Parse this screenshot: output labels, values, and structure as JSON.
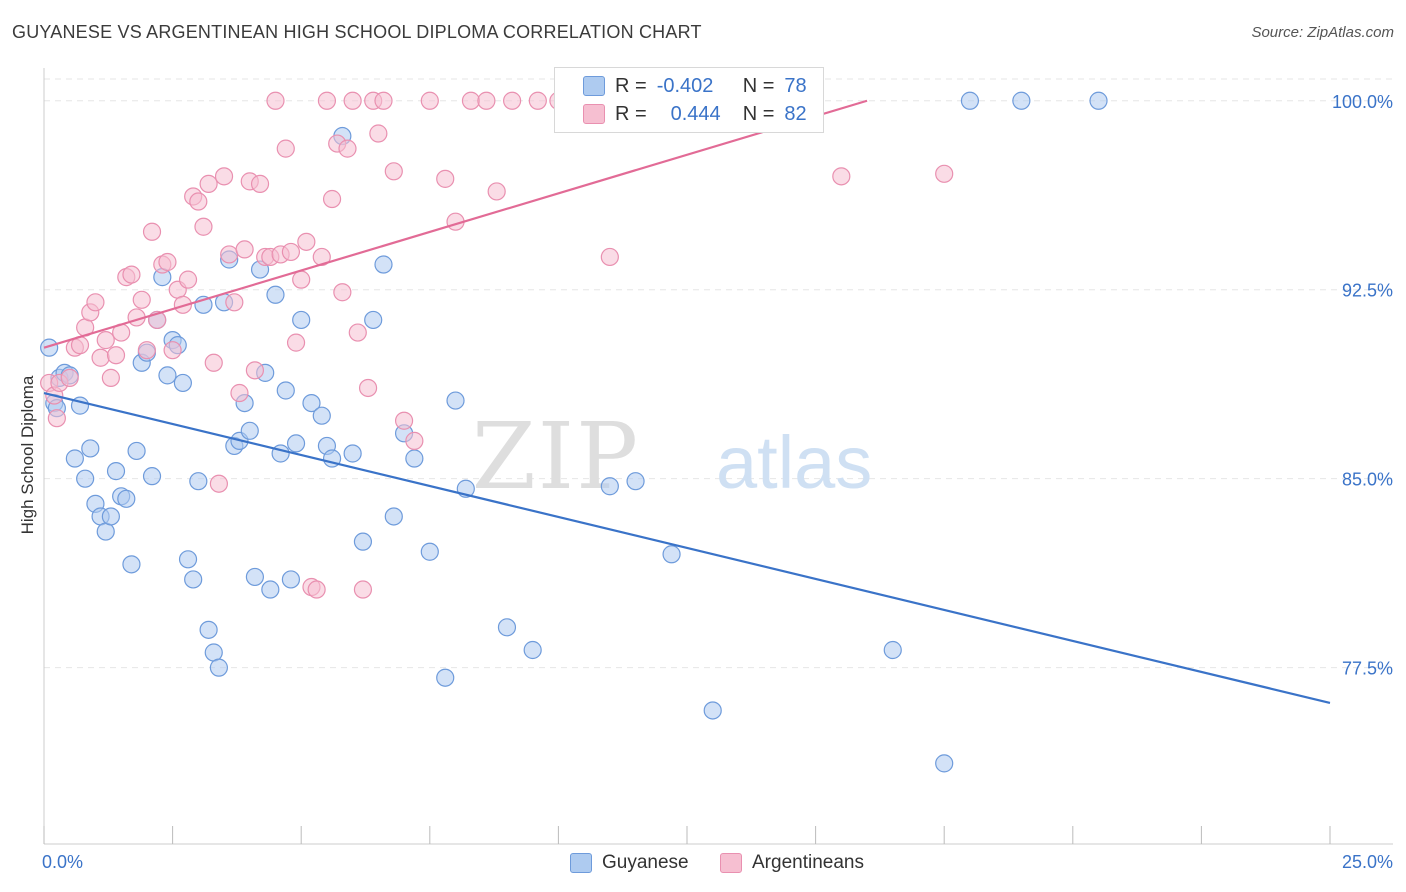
{
  "title": "GUYANESE VS ARGENTINEAN HIGH SCHOOL DIPLOMA CORRELATION CHART",
  "source": "Source: ZipAtlas.com",
  "watermark": {
    "zip": "ZIP",
    "atlas": "atlas"
  },
  "legend": {
    "r_label": "R =",
    "n_label": "N =",
    "guyanese": {
      "r": "-0.402",
      "n": "78"
    },
    "argentineans": {
      "r": "0.444",
      "n": "82"
    }
  },
  "colors": {
    "blue": "#3a73c8",
    "blue_fill": "#aecbf0",
    "blue_stroke": "#6e9bdb",
    "pink": "#e26b96",
    "pink_fill": "#f6bfd1",
    "pink_stroke": "#e990b0",
    "axis_text": "#3a73c8",
    "grid": "#e6e6e6"
  },
  "chart_data": {
    "type": "scatter",
    "title": "GUYANESE VS ARGENTINEAN HIGH SCHOOL DIPLOMA CORRELATION CHART",
    "xlabel": "",
    "ylabel": "High School Diploma",
    "xlim": [
      0,
      25
    ],
    "ylim": [
      70.5,
      101.3
    ],
    "x_tick_labels": [
      "0.0%",
      "25.0%"
    ],
    "y_ticks": [
      77.5,
      85.0,
      92.5,
      100.0
    ],
    "y_tick_labels": [
      "77.5%",
      "85.0%",
      "92.5%",
      "100.0%"
    ],
    "grid": true,
    "legend_position": "top-center",
    "series": [
      {
        "name": "Guyanese",
        "color": "#3a73c8",
        "trend": {
          "x": [
            0,
            25
          ],
          "y": [
            88.4,
            76.1
          ]
        },
        "x": [
          0.1,
          0.2,
          0.25,
          0.3,
          0.4,
          0.5,
          0.6,
          0.7,
          0.8,
          0.9,
          1.0,
          1.1,
          1.2,
          1.3,
          1.4,
          1.5,
          1.6,
          1.7,
          1.8,
          1.9,
          2.0,
          2.1,
          2.2,
          2.3,
          2.4,
          2.5,
          2.6,
          2.7,
          2.8,
          2.9,
          3.0,
          3.1,
          3.2,
          3.3,
          3.4,
          3.5,
          3.6,
          3.7,
          3.8,
          3.9,
          4.0,
          4.1,
          4.2,
          4.3,
          4.4,
          4.5,
          4.6,
          4.7,
          4.8,
          4.9,
          5.0,
          5.2,
          5.4,
          5.5,
          5.6,
          5.8,
          6.0,
          6.2,
          6.4,
          6.6,
          6.8,
          7.0,
          7.2,
          7.5,
          7.8,
          8.0,
          8.2,
          9.0,
          9.5,
          11.0,
          11.5,
          12.2,
          13.0,
          16.5,
          17.5,
          18.0,
          19.0,
          20.5
        ],
        "y": [
          90.2,
          88.0,
          87.8,
          89.0,
          89.2,
          89.1,
          85.8,
          87.9,
          85.0,
          86.2,
          84.0,
          83.5,
          82.9,
          83.5,
          85.3,
          84.3,
          84.2,
          81.6,
          86.1,
          89.6,
          90.0,
          85.1,
          91.3,
          93.0,
          89.1,
          90.5,
          90.3,
          88.8,
          81.8,
          81.0,
          84.9,
          91.9,
          79.0,
          78.1,
          77.5,
          92.0,
          93.7,
          86.3,
          86.5,
          88.0,
          86.9,
          81.1,
          93.3,
          89.2,
          80.6,
          92.3,
          86.0,
          88.5,
          81.0,
          86.4,
          91.3,
          88.0,
          87.5,
          86.3,
          85.8,
          98.6,
          86.0,
          82.5,
          91.3,
          93.5,
          83.5,
          86.8,
          85.8,
          82.1,
          77.1,
          88.1,
          84.6,
          79.1,
          78.2,
          84.7,
          84.9,
          82.0,
          75.8,
          78.2,
          73.7,
          100.0,
          100.0,
          100.0
        ]
      },
      {
        "name": "Argentineans",
        "color": "#e26b96",
        "trend": {
          "x": [
            0,
            16
          ],
          "y": [
            90.2,
            100.0
          ]
        },
        "x": [
          0.1,
          0.2,
          0.25,
          0.3,
          0.5,
          0.6,
          0.7,
          0.8,
          0.9,
          1.0,
          1.1,
          1.2,
          1.3,
          1.4,
          1.5,
          1.6,
          1.7,
          1.8,
          1.9,
          2.0,
          2.1,
          2.2,
          2.3,
          2.4,
          2.5,
          2.6,
          2.7,
          2.8,
          2.9,
          3.0,
          3.1,
          3.2,
          3.3,
          3.4,
          3.5,
          3.6,
          3.7,
          3.8,
          3.9,
          4.0,
          4.1,
          4.2,
          4.3,
          4.4,
          4.5,
          4.6,
          4.7,
          4.8,
          4.9,
          5.0,
          5.1,
          5.2,
          5.3,
          5.4,
          5.5,
          5.6,
          5.7,
          5.8,
          5.9,
          6.0,
          6.1,
          6.2,
          6.3,
          6.4,
          6.5,
          6.6,
          6.8,
          7.0,
          7.2,
          7.5,
          7.8,
          8.0,
          8.3,
          8.6,
          8.8,
          9.1,
          9.6,
          10.0,
          11.0,
          12.5,
          15.5,
          17.5
        ],
        "y": [
          88.8,
          88.3,
          87.4,
          88.8,
          89.0,
          90.2,
          90.3,
          91.0,
          91.6,
          92.0,
          89.8,
          90.5,
          89.0,
          89.9,
          90.8,
          93.0,
          93.1,
          91.4,
          92.1,
          90.1,
          94.8,
          91.3,
          93.5,
          93.6,
          90.1,
          92.5,
          91.9,
          92.9,
          96.2,
          96.0,
          95.0,
          96.7,
          89.6,
          84.8,
          97.0,
          93.9,
          92.0,
          88.4,
          94.1,
          96.8,
          89.3,
          96.7,
          93.8,
          93.8,
          100.0,
          93.9,
          98.1,
          94.0,
          90.4,
          92.9,
          94.4,
          80.7,
          80.6,
          93.8,
          100.0,
          96.1,
          98.3,
          92.4,
          98.1,
          100.0,
          90.8,
          80.6,
          88.6,
          100.0,
          98.7,
          100.0,
          97.2,
          87.3,
          86.5,
          100.0,
          96.9,
          95.2,
          100.0,
          100.0,
          96.4,
          100.0,
          100.0,
          100.0,
          93.8,
          100.0,
          97.0,
          97.1
        ]
      }
    ]
  }
}
